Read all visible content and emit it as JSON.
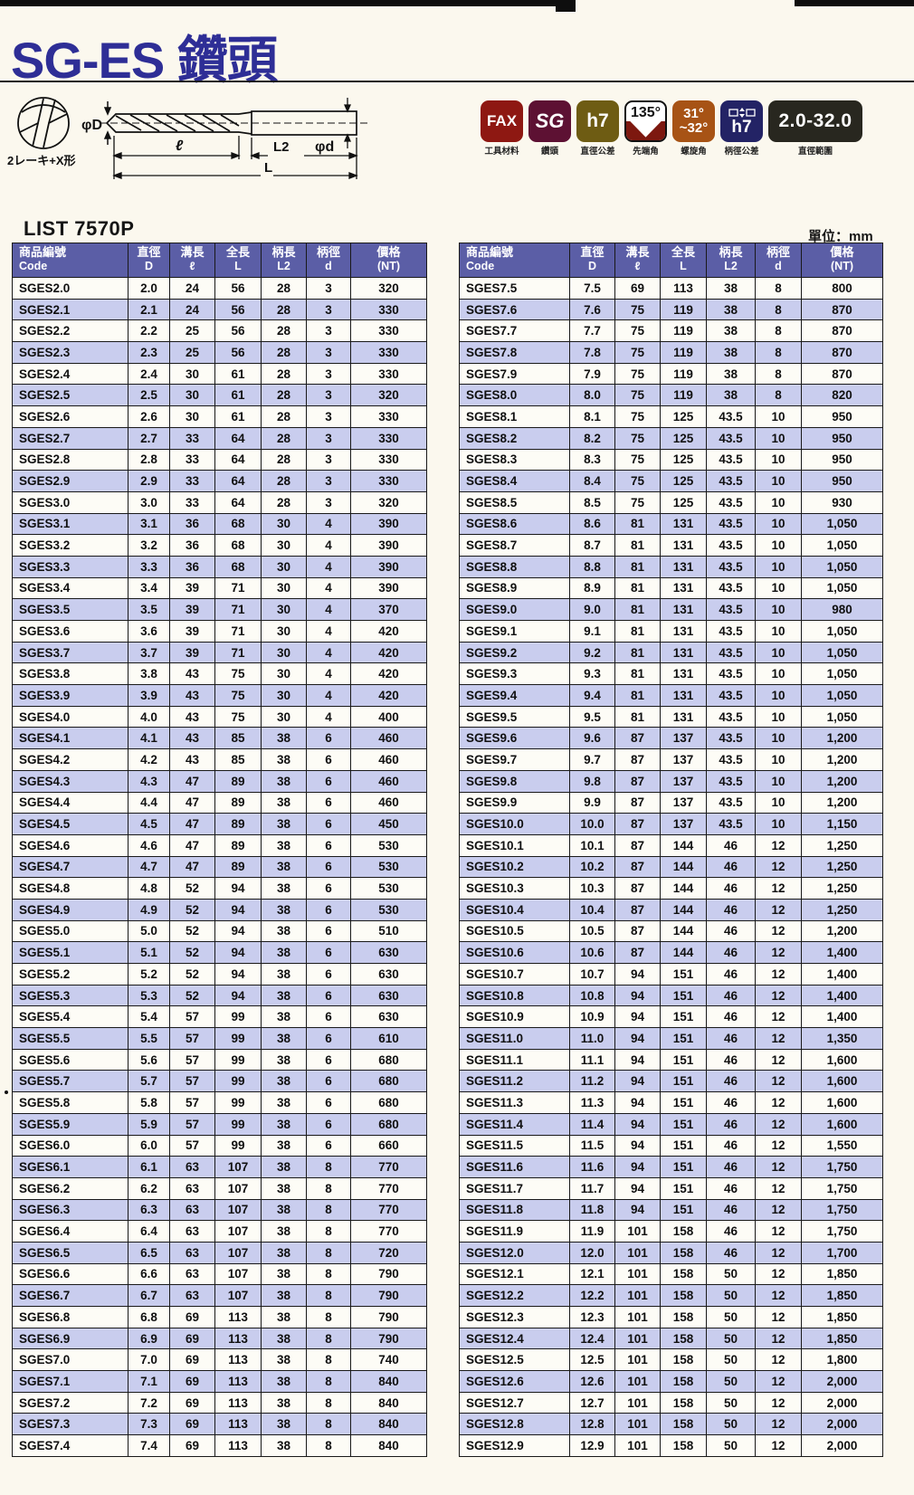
{
  "page": {
    "title": "SG-ES 鑽頭",
    "list_no": "LIST 7570P",
    "unit_label": "單位：mm"
  },
  "colors": {
    "title_blue": "#2e2e96",
    "paper": "#fbf8ee",
    "table_header_bg": "#5b5ea6",
    "row_alt": "#c9cdee",
    "badge_fax": "#8e1812",
    "badge_sg": "#5d1133",
    "badge_dia_tol": "#6e5c13",
    "badge_point_accent": "#7d180f",
    "badge_helix": "#a75315",
    "badge_shank_tol": "#232365",
    "badge_range": "#28271f"
  },
  "diagram": {
    "view_label": "2レーキ+X形",
    "dia_label": "φD",
    "flute_len_label": "ℓ",
    "shank_len_label": "L2",
    "shank_dia_label": "φd",
    "total_len_label": "L"
  },
  "badges": [
    {
      "label": "FAX",
      "caption": "工具材料"
    },
    {
      "label": "SG",
      "caption": "鑽頭"
    },
    {
      "label": "h7",
      "caption": "直徑公差"
    },
    {
      "label": "135°",
      "caption": "先端角"
    },
    {
      "line1": "31°",
      "line2": "~32°",
      "caption": "螺旋角"
    },
    {
      "label": "h7",
      "caption": "柄徑公差"
    },
    {
      "label": "2.0-32.0",
      "caption": "直徑範圍"
    }
  ],
  "table": {
    "headers": [
      {
        "zh": "商品編號",
        "en": "Code"
      },
      {
        "zh": "直徑",
        "en": "D"
      },
      {
        "zh": "溝長",
        "en": "ℓ"
      },
      {
        "zh": "全長",
        "en": "L"
      },
      {
        "zh": "柄長",
        "en": "L2"
      },
      {
        "zh": "柄徑",
        "en": "d"
      },
      {
        "zh": "價格",
        "en": "(NT)"
      }
    ]
  },
  "left_rows": [
    [
      "SGES2.0",
      "2.0",
      "24",
      "56",
      "28",
      "3",
      "320"
    ],
    [
      "SGES2.1",
      "2.1",
      "24",
      "56",
      "28",
      "3",
      "330"
    ],
    [
      "SGES2.2",
      "2.2",
      "25",
      "56",
      "28",
      "3",
      "330"
    ],
    [
      "SGES2.3",
      "2.3",
      "25",
      "56",
      "28",
      "3",
      "330"
    ],
    [
      "SGES2.4",
      "2.4",
      "30",
      "61",
      "28",
      "3",
      "330"
    ],
    [
      "SGES2.5",
      "2.5",
      "30",
      "61",
      "28",
      "3",
      "320"
    ],
    [
      "SGES2.6",
      "2.6",
      "30",
      "61",
      "28",
      "3",
      "330"
    ],
    [
      "SGES2.7",
      "2.7",
      "33",
      "64",
      "28",
      "3",
      "330"
    ],
    [
      "SGES2.8",
      "2.8",
      "33",
      "64",
      "28",
      "3",
      "330"
    ],
    [
      "SGES2.9",
      "2.9",
      "33",
      "64",
      "28",
      "3",
      "330"
    ],
    [
      "SGES3.0",
      "3.0",
      "33",
      "64",
      "28",
      "3",
      "320"
    ],
    [
      "SGES3.1",
      "3.1",
      "36",
      "68",
      "30",
      "4",
      "390"
    ],
    [
      "SGES3.2",
      "3.2",
      "36",
      "68",
      "30",
      "4",
      "390"
    ],
    [
      "SGES3.3",
      "3.3",
      "36",
      "68",
      "30",
      "4",
      "390"
    ],
    [
      "SGES3.4",
      "3.4",
      "39",
      "71",
      "30",
      "4",
      "390"
    ],
    [
      "SGES3.5",
      "3.5",
      "39",
      "71",
      "30",
      "4",
      "370"
    ],
    [
      "SGES3.6",
      "3.6",
      "39",
      "71",
      "30",
      "4",
      "420"
    ],
    [
      "SGES3.7",
      "3.7",
      "39",
      "71",
      "30",
      "4",
      "420"
    ],
    [
      "SGES3.8",
      "3.8",
      "43",
      "75",
      "30",
      "4",
      "420"
    ],
    [
      "SGES3.9",
      "3.9",
      "43",
      "75",
      "30",
      "4",
      "420"
    ],
    [
      "SGES4.0",
      "4.0",
      "43",
      "75",
      "30",
      "4",
      "400"
    ],
    [
      "SGES4.1",
      "4.1",
      "43",
      "85",
      "38",
      "6",
      "460"
    ],
    [
      "SGES4.2",
      "4.2",
      "43",
      "85",
      "38",
      "6",
      "460"
    ],
    [
      "SGES4.3",
      "4.3",
      "47",
      "89",
      "38",
      "6",
      "460"
    ],
    [
      "SGES4.4",
      "4.4",
      "47",
      "89",
      "38",
      "6",
      "460"
    ],
    [
      "SGES4.5",
      "4.5",
      "47",
      "89",
      "38",
      "6",
      "450"
    ],
    [
      "SGES4.6",
      "4.6",
      "47",
      "89",
      "38",
      "6",
      "530"
    ],
    [
      "SGES4.7",
      "4.7",
      "47",
      "89",
      "38",
      "6",
      "530"
    ],
    [
      "SGES4.8",
      "4.8",
      "52",
      "94",
      "38",
      "6",
      "530"
    ],
    [
      "SGES4.9",
      "4.9",
      "52",
      "94",
      "38",
      "6",
      "530"
    ],
    [
      "SGES5.0",
      "5.0",
      "52",
      "94",
      "38",
      "6",
      "510"
    ],
    [
      "SGES5.1",
      "5.1",
      "52",
      "94",
      "38",
      "6",
      "630"
    ],
    [
      "SGES5.2",
      "5.2",
      "52",
      "94",
      "38",
      "6",
      "630"
    ],
    [
      "SGES5.3",
      "5.3",
      "52",
      "94",
      "38",
      "6",
      "630"
    ],
    [
      "SGES5.4",
      "5.4",
      "57",
      "99",
      "38",
      "6",
      "630"
    ],
    [
      "SGES5.5",
      "5.5",
      "57",
      "99",
      "38",
      "6",
      "610"
    ],
    [
      "SGES5.6",
      "5.6",
      "57",
      "99",
      "38",
      "6",
      "680"
    ],
    [
      "SGES5.7",
      "5.7",
      "57",
      "99",
      "38",
      "6",
      "680"
    ],
    [
      "SGES5.8",
      "5.8",
      "57",
      "99",
      "38",
      "6",
      "680"
    ],
    [
      "SGES5.9",
      "5.9",
      "57",
      "99",
      "38",
      "6",
      "680"
    ],
    [
      "SGES6.0",
      "6.0",
      "57",
      "99",
      "38",
      "6",
      "660"
    ],
    [
      "SGES6.1",
      "6.1",
      "63",
      "107",
      "38",
      "8",
      "770"
    ],
    [
      "SGES6.2",
      "6.2",
      "63",
      "107",
      "38",
      "8",
      "770"
    ],
    [
      "SGES6.3",
      "6.3",
      "63",
      "107",
      "38",
      "8",
      "770"
    ],
    [
      "SGES6.4",
      "6.4",
      "63",
      "107",
      "38",
      "8",
      "770"
    ],
    [
      "SGES6.5",
      "6.5",
      "63",
      "107",
      "38",
      "8",
      "720"
    ],
    [
      "SGES6.6",
      "6.6",
      "63",
      "107",
      "38",
      "8",
      "790"
    ],
    [
      "SGES6.7",
      "6.7",
      "63",
      "107",
      "38",
      "8",
      "790"
    ],
    [
      "SGES6.8",
      "6.8",
      "69",
      "113",
      "38",
      "8",
      "790"
    ],
    [
      "SGES6.9",
      "6.9",
      "69",
      "113",
      "38",
      "8",
      "790"
    ],
    [
      "SGES7.0",
      "7.0",
      "69",
      "113",
      "38",
      "8",
      "740"
    ],
    [
      "SGES7.1",
      "7.1",
      "69",
      "113",
      "38",
      "8",
      "840"
    ],
    [
      "SGES7.2",
      "7.2",
      "69",
      "113",
      "38",
      "8",
      "840"
    ],
    [
      "SGES7.3",
      "7.3",
      "69",
      "113",
      "38",
      "8",
      "840"
    ],
    [
      "SGES7.4",
      "7.4",
      "69",
      "113",
      "38",
      "8",
      "840"
    ]
  ],
  "right_rows": [
    [
      "SGES7.5",
      "7.5",
      "69",
      "113",
      "38",
      "8",
      "800"
    ],
    [
      "SGES7.6",
      "7.6",
      "75",
      "119",
      "38",
      "8",
      "870"
    ],
    [
      "SGES7.7",
      "7.7",
      "75",
      "119",
      "38",
      "8",
      "870"
    ],
    [
      "SGES7.8",
      "7.8",
      "75",
      "119",
      "38",
      "8",
      "870"
    ],
    [
      "SGES7.9",
      "7.9",
      "75",
      "119",
      "38",
      "8",
      "870"
    ],
    [
      "SGES8.0",
      "8.0",
      "75",
      "119",
      "38",
      "8",
      "820"
    ],
    [
      "SGES8.1",
      "8.1",
      "75",
      "125",
      "43.5",
      "10",
      "950"
    ],
    [
      "SGES8.2",
      "8.2",
      "75",
      "125",
      "43.5",
      "10",
      "950"
    ],
    [
      "SGES8.3",
      "8.3",
      "75",
      "125",
      "43.5",
      "10",
      "950"
    ],
    [
      "SGES8.4",
      "8.4",
      "75",
      "125",
      "43.5",
      "10",
      "950"
    ],
    [
      "SGES8.5",
      "8.5",
      "75",
      "125",
      "43.5",
      "10",
      "930"
    ],
    [
      "SGES8.6",
      "8.6",
      "81",
      "131",
      "43.5",
      "10",
      "1,050"
    ],
    [
      "SGES8.7",
      "8.7",
      "81",
      "131",
      "43.5",
      "10",
      "1,050"
    ],
    [
      "SGES8.8",
      "8.8",
      "81",
      "131",
      "43.5",
      "10",
      "1,050"
    ],
    [
      "SGES8.9",
      "8.9",
      "81",
      "131",
      "43.5",
      "10",
      "1,050"
    ],
    [
      "SGES9.0",
      "9.0",
      "81",
      "131",
      "43.5",
      "10",
      "980"
    ],
    [
      "SGES9.1",
      "9.1",
      "81",
      "131",
      "43.5",
      "10",
      "1,050"
    ],
    [
      "SGES9.2",
      "9.2",
      "81",
      "131",
      "43.5",
      "10",
      "1,050"
    ],
    [
      "SGES9.3",
      "9.3",
      "81",
      "131",
      "43.5",
      "10",
      "1,050"
    ],
    [
      "SGES9.4",
      "9.4",
      "81",
      "131",
      "43.5",
      "10",
      "1,050"
    ],
    [
      "SGES9.5",
      "9.5",
      "81",
      "131",
      "43.5",
      "10",
      "1,050"
    ],
    [
      "SGES9.6",
      "9.6",
      "87",
      "137",
      "43.5",
      "10",
      "1,200"
    ],
    [
      "SGES9.7",
      "9.7",
      "87",
      "137",
      "43.5",
      "10",
      "1,200"
    ],
    [
      "SGES9.8",
      "9.8",
      "87",
      "137",
      "43.5",
      "10",
      "1,200"
    ],
    [
      "SGES9.9",
      "9.9",
      "87",
      "137",
      "43.5",
      "10",
      "1,200"
    ],
    [
      "SGES10.0",
      "10.0",
      "87",
      "137",
      "43.5",
      "10",
      "1,150"
    ],
    [
      "SGES10.1",
      "10.1",
      "87",
      "144",
      "46",
      "12",
      "1,250"
    ],
    [
      "SGES10.2",
      "10.2",
      "87",
      "144",
      "46",
      "12",
      "1,250"
    ],
    [
      "SGES10.3",
      "10.3",
      "87",
      "144",
      "46",
      "12",
      "1,250"
    ],
    [
      "SGES10.4",
      "10.4",
      "87",
      "144",
      "46",
      "12",
      "1,250"
    ],
    [
      "SGES10.5",
      "10.5",
      "87",
      "144",
      "46",
      "12",
      "1,200"
    ],
    [
      "SGES10.6",
      "10.6",
      "87",
      "144",
      "46",
      "12",
      "1,400"
    ],
    [
      "SGES10.7",
      "10.7",
      "94",
      "151",
      "46",
      "12",
      "1,400"
    ],
    [
      "SGES10.8",
      "10.8",
      "94",
      "151",
      "46",
      "12",
      "1,400"
    ],
    [
      "SGES10.9",
      "10.9",
      "94",
      "151",
      "46",
      "12",
      "1,400"
    ],
    [
      "SGES11.0",
      "11.0",
      "94",
      "151",
      "46",
      "12",
      "1,350"
    ],
    [
      "SGES11.1",
      "11.1",
      "94",
      "151",
      "46",
      "12",
      "1,600"
    ],
    [
      "SGES11.2",
      "11.2",
      "94",
      "151",
      "46",
      "12",
      "1,600"
    ],
    [
      "SGES11.3",
      "11.3",
      "94",
      "151",
      "46",
      "12",
      "1,600"
    ],
    [
      "SGES11.4",
      "11.4",
      "94",
      "151",
      "46",
      "12",
      "1,600"
    ],
    [
      "SGES11.5",
      "11.5",
      "94",
      "151",
      "46",
      "12",
      "1,550"
    ],
    [
      "SGES11.6",
      "11.6",
      "94",
      "151",
      "46",
      "12",
      "1,750"
    ],
    [
      "SGES11.7",
      "11.7",
      "94",
      "151",
      "46",
      "12",
      "1,750"
    ],
    [
      "SGES11.8",
      "11.8",
      "94",
      "151",
      "46",
      "12",
      "1,750"
    ],
    [
      "SGES11.9",
      "11.9",
      "101",
      "158",
      "46",
      "12",
      "1,750"
    ],
    [
      "SGES12.0",
      "12.0",
      "101",
      "158",
      "46",
      "12",
      "1,700"
    ],
    [
      "SGES12.1",
      "12.1",
      "101",
      "158",
      "50",
      "12",
      "1,850"
    ],
    [
      "SGES12.2",
      "12.2",
      "101",
      "158",
      "50",
      "12",
      "1,850"
    ],
    [
      "SGES12.3",
      "12.3",
      "101",
      "158",
      "50",
      "12",
      "1,850"
    ],
    [
      "SGES12.4",
      "12.4",
      "101",
      "158",
      "50",
      "12",
      "1,850"
    ],
    [
      "SGES12.5",
      "12.5",
      "101",
      "158",
      "50",
      "12",
      "1,800"
    ],
    [
      "SGES12.6",
      "12.6",
      "101",
      "158",
      "50",
      "12",
      "2,000"
    ],
    [
      "SGES12.7",
      "12.7",
      "101",
      "158",
      "50",
      "12",
      "2,000"
    ],
    [
      "SGES12.8",
      "12.8",
      "101",
      "158",
      "50",
      "12",
      "2,000"
    ],
    [
      "SGES12.9",
      "12.9",
      "101",
      "158",
      "50",
      "12",
      "2,000"
    ]
  ]
}
